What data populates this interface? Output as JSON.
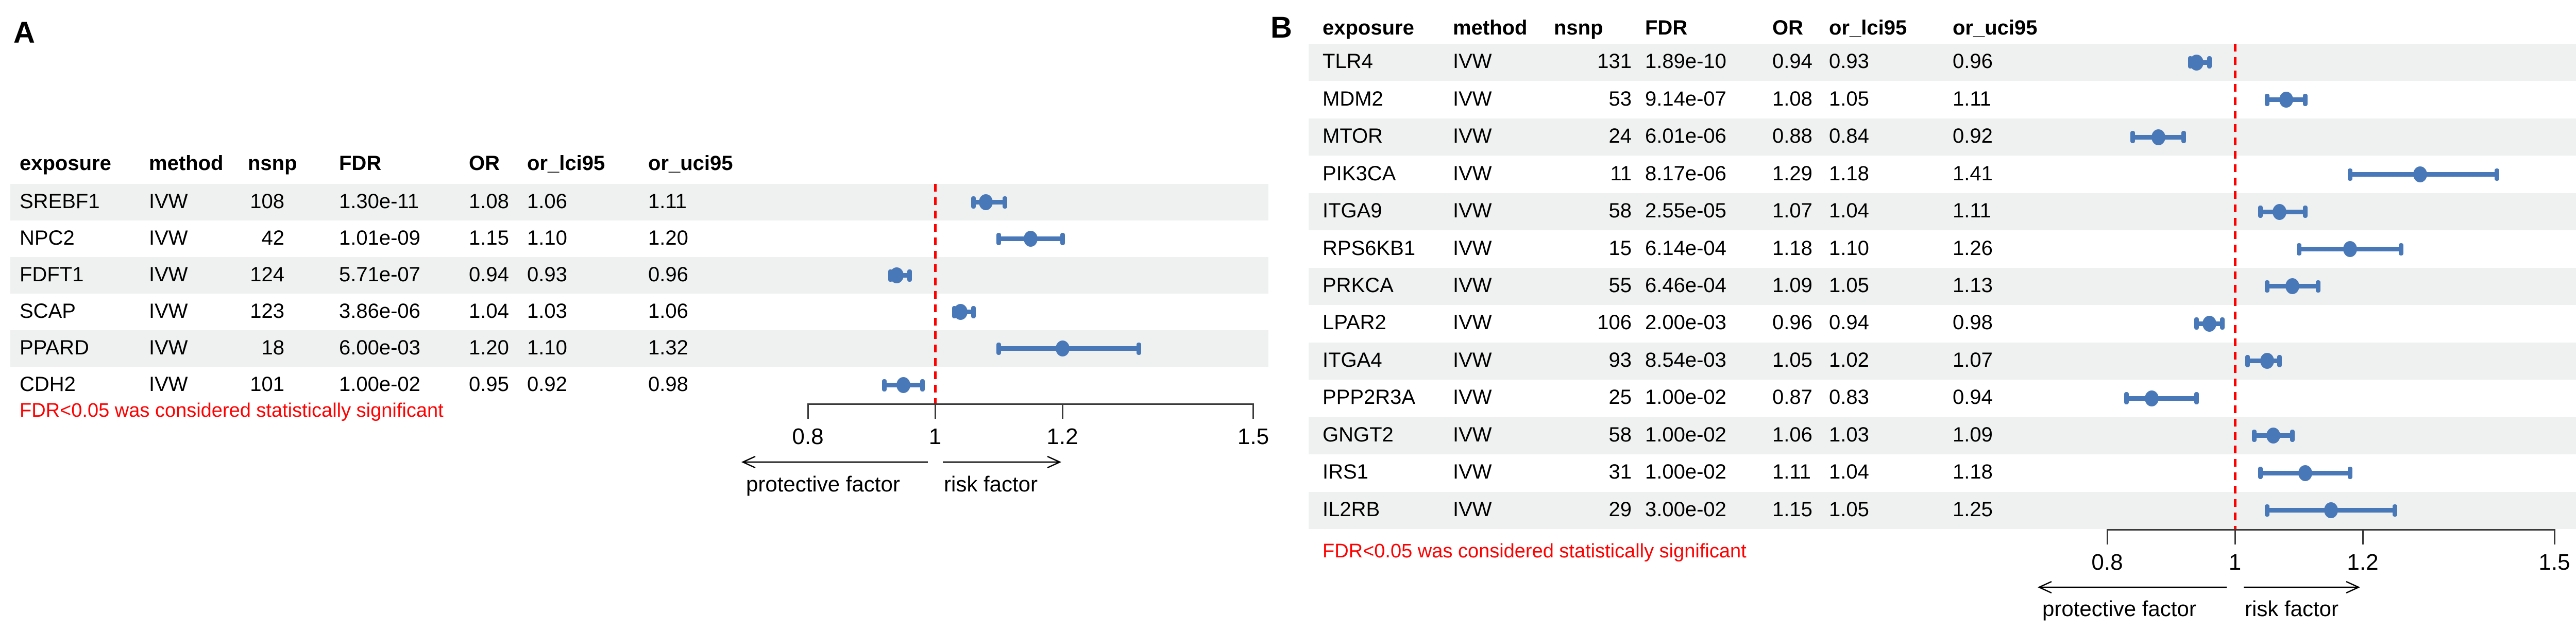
{
  "colors": {
    "marker_blue": "#4878b8",
    "reference_line_red": "#ff0000",
    "band_gray": "#eef1f0",
    "footnote_red": "#ff0000",
    "axis_black": "#3a3a3a",
    "text_black": "#000000"
  },
  "axis": {
    "tick_labels": [
      "0.8",
      "1",
      "1.2",
      "1.5"
    ],
    "left_arrow_label": "protective factor",
    "right_arrow_label": "risk factor"
  },
  "panels": [
    {
      "label": "A",
      "columns": [
        "exposure",
        "method",
        "nsnp",
        "FDR",
        "OR",
        "or_lci95",
        "or_uci95"
      ],
      "rows": [
        [
          "SREBF1",
          "IVW",
          "108",
          "1.30e-11",
          "1.08",
          "1.06",
          "1.11"
        ],
        [
          "NPC2",
          "IVW",
          "42",
          "1.01e-09",
          "1.15",
          "1.10",
          "1.20"
        ],
        [
          "FDFT1",
          "IVW",
          "124",
          "5.71e-07",
          "0.94",
          "0.93",
          "0.96"
        ],
        [
          "SCAP",
          "IVW",
          "123",
          "3.86e-06",
          "1.04",
          "1.03",
          "1.06"
        ],
        [
          "PPARD",
          "IVW",
          "18",
          "6.00e-03",
          "1.20",
          "1.10",
          "1.32"
        ],
        [
          "CDH2",
          "IVW",
          "101",
          "1.00e-02",
          "0.95",
          "0.92",
          "0.98"
        ]
      ],
      "footnote": "FDR<0.05 was considered statistically significant"
    },
    {
      "label": "B",
      "columns": [
        "exposure",
        "method",
        "nsnp",
        "FDR",
        "OR",
        "or_lci95",
        "or_uci95"
      ],
      "rows": [
        [
          "TLR4",
          "IVW",
          "131",
          "1.89e-10",
          "0.94",
          "0.93",
          "0.96"
        ],
        [
          "MDM2",
          "IVW",
          "53",
          "9.14e-07",
          "1.08",
          "1.05",
          "1.11"
        ],
        [
          "MTOR",
          "IVW",
          "24",
          "6.01e-06",
          "0.88",
          "0.84",
          "0.92"
        ],
        [
          "PIK3CA",
          "IVW",
          "11",
          "8.17e-06",
          "1.29",
          "1.18",
          "1.41"
        ],
        [
          "ITGA9",
          "IVW",
          "58",
          "2.55e-05",
          "1.07",
          "1.04",
          "1.11"
        ],
        [
          "RPS6KB1",
          "IVW",
          "15",
          "6.14e-04",
          "1.18",
          "1.10",
          "1.26"
        ],
        [
          "PRKCA",
          "IVW",
          "55",
          "6.46e-04",
          "1.09",
          "1.05",
          "1.13"
        ],
        [
          "LPAR2",
          "IVW",
          "106",
          "2.00e-03",
          "0.96",
          "0.94",
          "0.98"
        ],
        [
          "ITGA4",
          "IVW",
          "93",
          "8.54e-03",
          "1.05",
          "1.02",
          "1.07"
        ],
        [
          "PPP2R3A",
          "IVW",
          "25",
          "1.00e-02",
          "0.87",
          "0.83",
          "0.94"
        ],
        [
          "GNGT2",
          "IVW",
          "58",
          "1.00e-02",
          "1.06",
          "1.03",
          "1.09"
        ],
        [
          "IRS1",
          "IVW",
          "31",
          "1.00e-02",
          "1.11",
          "1.04",
          "1.18"
        ],
        [
          "IL2RB",
          "IVW",
          "29",
          "3.00e-02",
          "1.15",
          "1.05",
          "1.25"
        ]
      ],
      "footnote": "FDR<0.05 was considered statistically significant"
    }
  ],
  "chart_data": [
    {
      "type": "scatter",
      "subtype": "forest-plot",
      "panel": "A",
      "title": "",
      "categories": [
        "SREBF1",
        "NPC2",
        "FDFT1",
        "SCAP",
        "PPARD",
        "CDH2"
      ],
      "series": [
        {
          "name": "OR",
          "values": [
            1.08,
            1.15,
            0.94,
            1.04,
            1.2,
            0.95
          ]
        },
        {
          "name": "or_lci95",
          "values": [
            1.06,
            1.1,
            0.93,
            1.03,
            1.1,
            0.92
          ]
        },
        {
          "name": "or_uci95",
          "values": [
            1.11,
            1.2,
            0.96,
            1.06,
            1.32,
            0.98
          ]
        }
      ],
      "x_ticks": [
        0.8,
        1,
        1.2,
        1.5
      ],
      "x_range": [
        0.8,
        1.5
      ],
      "x_scale": "linear",
      "reference_line_x": 1,
      "grid": false,
      "annotations": [
        "protective factor",
        "risk factor",
        "FDR<0.05 was considered statistically significant"
      ]
    },
    {
      "type": "scatter",
      "subtype": "forest-plot",
      "panel": "B",
      "title": "",
      "categories": [
        "TLR4",
        "MDM2",
        "MTOR",
        "PIK3CA",
        "ITGA9",
        "RPS6KB1",
        "PRKCA",
        "LPAR2",
        "ITGA4",
        "PPP2R3A",
        "GNGT2",
        "IRS1",
        "IL2RB"
      ],
      "series": [
        {
          "name": "OR",
          "values": [
            0.94,
            1.08,
            0.88,
            1.29,
            1.07,
            1.18,
            1.09,
            0.96,
            1.05,
            0.87,
            1.06,
            1.11,
            1.15
          ]
        },
        {
          "name": "or_lci95",
          "values": [
            0.93,
            1.05,
            0.84,
            1.18,
            1.04,
            1.1,
            1.05,
            0.94,
            1.02,
            0.83,
            1.03,
            1.04,
            1.05
          ]
        },
        {
          "name": "or_uci95",
          "values": [
            0.96,
            1.11,
            0.92,
            1.41,
            1.11,
            1.26,
            1.13,
            0.98,
            1.07,
            0.94,
            1.09,
            1.18,
            1.25
          ]
        }
      ],
      "x_ticks": [
        0.8,
        1,
        1.2,
        1.5
      ],
      "x_range": [
        0.8,
        1.5
      ],
      "x_scale": "linear",
      "reference_line_x": 1,
      "grid": false,
      "annotations": [
        "protective factor",
        "risk factor",
        "FDR<0.05 was considered statistically significant"
      ]
    }
  ]
}
